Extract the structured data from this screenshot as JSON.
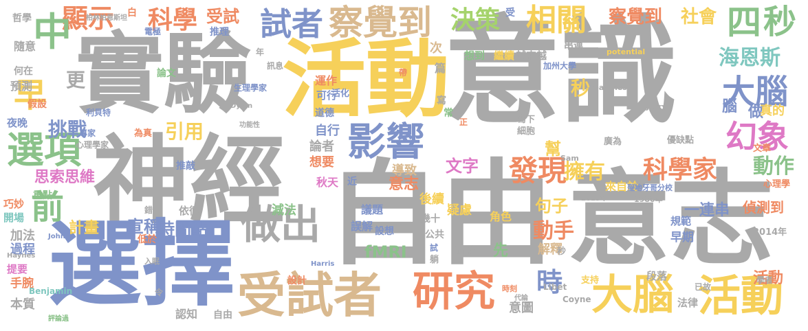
{
  "words": [
    {
      "text": "意識",
      "color": "#a9a9a9"
    },
    {
      "text": "自由",
      "color": "#a9a9a9"
    },
    {
      "text": "意志",
      "color": "#a9a9a9"
    },
    {
      "text": "神經",
      "color": "#a9a9a9"
    },
    {
      "text": "實驗",
      "color": "#a9a9a9"
    },
    {
      "text": "選擇",
      "color": "#7f93c9"
    },
    {
      "text": "活動",
      "color": "#f6d05a"
    },
    {
      "text": "受試者",
      "color": "#d9b98f"
    },
    {
      "text": "研究",
      "color": "#ef8a62"
    },
    {
      "text": "大腦",
      "color": "#f6d05a"
    },
    {
      "text": "活動",
      "color": "#f6d05a"
    },
    {
      "text": "影響",
      "color": "#7f93c9"
    },
    {
      "text": "做出",
      "color": "#a9a9a9"
    },
    {
      "text": "科學家",
      "color": "#ef8a62"
    },
    {
      "text": "發現",
      "color": "#ef8a62"
    },
    {
      "text": "察覺到",
      "color": "#d9b98f"
    },
    {
      "text": "試者",
      "color": "#7f93c9"
    },
    {
      "text": "科學",
      "color": "#ef8a62"
    },
    {
      "text": "顯示",
      "color": "#ef8a62"
    },
    {
      "text": "相關",
      "color": "#f6d05a"
    },
    {
      "text": "決策",
      "color": "#a5d36b"
    },
    {
      "text": "幻象",
      "color": "#de79c5"
    },
    {
      "text": "大腦",
      "color": "#7f93c9"
    },
    {
      "text": "選項",
      "color": "#8bc28a"
    },
    {
      "text": "四",
      "color": "#8bc28a"
    },
    {
      "text": "秒",
      "color": "#8bc28a"
    },
    {
      "text": "中",
      "color": "#8bc28a"
    },
    {
      "text": "早",
      "color": "#f6d05a"
    },
    {
      "text": "前",
      "color": "#8bc28a"
    },
    {
      "text": "時",
      "color": "#7f93c9"
    },
    {
      "text": "動作",
      "color": "#8bc28a"
    },
    {
      "text": "動手",
      "color": "#ef8a62"
    },
    {
      "text": "引用",
      "color": "#f6d05a"
    },
    {
      "text": "挑戰",
      "color": "#7f93c9"
    },
    {
      "text": "社會",
      "color": "#f6d05a"
    },
    {
      "text": "海恩斯",
      "color": "#7fc7bf"
    },
    {
      "text": "察覺到",
      "color": "#ef8a62"
    },
    {
      "text": "受試",
      "color": "#ef8a62"
    },
    {
      "text": "活動",
      "color": "#ef8a62"
    },
    {
      "text": "擁有",
      "color": "#f6d05a"
    },
    {
      "text": "文字",
      "color": "#de79c5"
    },
    {
      "text": "思索思維",
      "color": "#de79c5"
    },
    {
      "text": "時間點",
      "color": "#7f93c9"
    },
    {
      "text": "計畫",
      "color": "#f6d05a"
    },
    {
      "text": "宣稱",
      "color": "#7f93c9"
    },
    {
      "text": "意志",
      "color": "#ef8a62"
    },
    {
      "text": "句子",
      "color": "#f6d05a"
    },
    {
      "text": "一連串",
      "color": "#7f93c9"
    },
    {
      "text": "偵測到",
      "color": "#ef8a62"
    },
    {
      "text": "更",
      "color": "#a9a9a9"
    },
    {
      "text": "隨意",
      "color": "#a9a9a9"
    },
    {
      "text": "預測",
      "color": "#a9a9a9"
    },
    {
      "text": "假設",
      "color": "#ef8a62"
    },
    {
      "text": "夜晚",
      "color": "#7f93c9"
    },
    {
      "text": "加法",
      "color": "#a9a9a9"
    },
    {
      "text": "過程",
      "color": "#7f93c9"
    },
    {
      "text": "手腕",
      "color": "#ef8a62"
    },
    {
      "text": "本質",
      "color": "#a9a9a9"
    },
    {
      "text": "提要",
      "color": "#de79c5"
    },
    {
      "text": "巧妙",
      "color": "#ef8a62"
    },
    {
      "text": "開場",
      "color": "#7fc7bf"
    },
    {
      "text": "重點",
      "color": "#8bc28a"
    },
    {
      "text": "fMRI",
      "color": "#8bc28a"
    },
    {
      "text": "減法",
      "color": "#8bc28a"
    },
    {
      "text": "議題",
      "color": "#7f93c9"
    },
    {
      "text": "誤解",
      "color": "#7f93c9"
    },
    {
      "text": "設想",
      "color": "#7f93c9"
    },
    {
      "text": "後續",
      "color": "#f6d05a"
    },
    {
      "text": "疑慮",
      "color": "#f6d05a"
    },
    {
      "text": "角色",
      "color": "#f6d05a"
    },
    {
      "text": "面臨",
      "color": "#a9a9a9"
    },
    {
      "text": "先",
      "color": "#8bc28a"
    },
    {
      "text": "解釋",
      "color": "#d9b98f"
    },
    {
      "text": "意圖",
      "color": "#a9a9a9"
    },
    {
      "text": "法律",
      "color": "#a9a9a9"
    },
    {
      "text": "段落",
      "color": "#a9a9a9"
    },
    {
      "text": "規範",
      "color": "#7f93c9"
    },
    {
      "text": "早期",
      "color": "#7f93c9"
    },
    {
      "text": "2014年",
      "color": "#a9a9a9"
    },
    {
      "text": "心理學",
      "color": "#ef8a62"
    },
    {
      "text": "來自於",
      "color": "#f6d05a"
    },
    {
      "text": "做",
      "color": "#7f93c9"
    },
    {
      "text": "真的",
      "color": "#f6d05a"
    },
    {
      "text": "腦",
      "color": "#7f93c9"
    },
    {
      "text": "秒",
      "color": "#f6d05a"
    },
    {
      "text": "幫",
      "color": "#f6d05a"
    },
    {
      "text": "論者",
      "color": "#a9a9a9"
    },
    {
      "text": "想要",
      "color": "#ef8a62"
    },
    {
      "text": "自行",
      "color": "#7f93c9"
    },
    {
      "text": "導致",
      "color": "#d9b98f"
    },
    {
      "text": "秋天",
      "color": "#de79c5"
    },
    {
      "text": "近",
      "color": "#7f93c9"
    },
    {
      "text": "推敲",
      "color": "#7f93c9"
    },
    {
      "text": "依循",
      "color": "#a9a9a9"
    },
    {
      "text": "低於",
      "color": "#ef8a62"
    },
    {
      "text": "認知",
      "color": "#a9a9a9"
    },
    {
      "text": "自由",
      "color": "#a9a9a9"
    },
    {
      "text": "設計",
      "color": "#ef8a62"
    },
    {
      "text": "哲學",
      "color": "#a9a9a9"
    },
    {
      "text": "何在",
      "color": "#a9a9a9"
    },
    {
      "text": "推理",
      "color": "#7f93c9"
    },
    {
      "text": "論文",
      "color": "#8bc28a"
    },
    {
      "text": "運作",
      "color": "#ef8a62"
    },
    {
      "text": "可行",
      "color": "#7f93c9"
    },
    {
      "text": "訊息",
      "color": "#a9a9a9"
    },
    {
      "text": "道德",
      "color": "#7f93c9"
    },
    {
      "text": "活化",
      "color": "#7f93c9"
    },
    {
      "text": "生理學家",
      "color": "#7f93c9"
    },
    {
      "text": "次",
      "color": "#d9b98f"
    },
    {
      "text": "篇",
      "color": "#a9a9a9"
    },
    {
      "text": "想到",
      "color": "#8bc28a"
    },
    {
      "text": "繼續",
      "color": "#f6d05a"
    },
    {
      "text": "越來越",
      "color": "#a9a9a9"
    },
    {
      "text": "串連",
      "color": "#a9a9a9"
    },
    {
      "text": "加州大學",
      "color": "#7f93c9"
    },
    {
      "text": "寫下",
      "color": "#a9a9a9"
    },
    {
      "text": "細胞",
      "color": "#a9a9a9"
    },
    {
      "text": "廣為",
      "color": "#a9a9a9"
    },
    {
      "text": "優缺點",
      "color": "#a9a9a9"
    },
    {
      "text": "文章",
      "color": "#ef8a62"
    },
    {
      "text": "Benjamin",
      "color": "#7fc7bf"
    },
    {
      "text": "利貝特",
      "color": "#7f93c9"
    },
    {
      "text": "專家",
      "color": "#7f93c9"
    },
    {
      "text": "為真",
      "color": "#ef8a62"
    },
    {
      "text": "心理學家",
      "color": "#a9a9a9"
    },
    {
      "text": "受",
      "color": "#7f93c9"
    },
    {
      "text": "寫",
      "color": "#a9a9a9"
    },
    {
      "text": "常",
      "color": "#8bc28a"
    },
    {
      "text": "正",
      "color": "#ef8a62"
    },
    {
      "text": "帶",
      "color": "#ef8a62"
    },
    {
      "text": "公共",
      "color": "#a9a9a9"
    },
    {
      "text": "幾十",
      "color": "#a9a9a9"
    },
    {
      "text": "試",
      "color": "#7f93c9"
    },
    {
      "text": "白",
      "color": "#ef8a62"
    },
    {
      "text": "電極",
      "color": "#7f93c9"
    },
    {
      "text": "年",
      "color": "#a9a9a9"
    },
    {
      "text": "令",
      "color": "#a9a9a9"
    },
    {
      "text": "錯",
      "color": "#a9a9a9"
    },
    {
      "text": "躺",
      "color": "#a9a9a9"
    },
    {
      "text": "秒",
      "color": "#a9a9a9"
    },
    {
      "text": "支持",
      "color": "#f6d05a"
    },
    {
      "text": "Libet",
      "color": "#a9a9a9"
    },
    {
      "text": "Coyne",
      "color": "#a9a9a9"
    },
    {
      "text": "已故",
      "color": "#a9a9a9"
    },
    {
      "text": "1980年",
      "color": "#a9a9a9"
    },
    {
      "text": "聖地牙哥分校",
      "color": "#7f93c9"
    },
    {
      "text": "readiness",
      "color": "#a9a9a9"
    },
    {
      "text": "potential",
      "color": "#f6d05a"
    },
    {
      "text": "Jerry",
      "color": "#a9a9a9"
    },
    {
      "text": "Sam",
      "color": "#a9a9a9"
    },
    {
      "text": "Haynes",
      "color": "#a9a9a9"
    },
    {
      "text": "Dylan",
      "color": "#a9a9a9"
    },
    {
      "text": "John",
      "color": "#7f93c9"
    },
    {
      "text": "Harris",
      "color": "#7f93c9"
    },
    {
      "text": "2013年",
      "color": "#a9a9a9"
    },
    {
      "text": "學者",
      "color": "#a9a9a9"
    },
    {
      "text": "入眠",
      "color": "#a9a9a9"
    },
    {
      "text": "功能性",
      "color": "#a9a9a9"
    },
    {
      "text": "時刻",
      "color": "#ef8a62"
    },
    {
      "text": "代論",
      "color": "#a9a9a9"
    },
    {
      "text": "評論過",
      "color": "#8bc28a"
    },
    {
      "text": "柏林柏恩斯坦",
      "color": "#a9a9a9"
    }
  ]
}
